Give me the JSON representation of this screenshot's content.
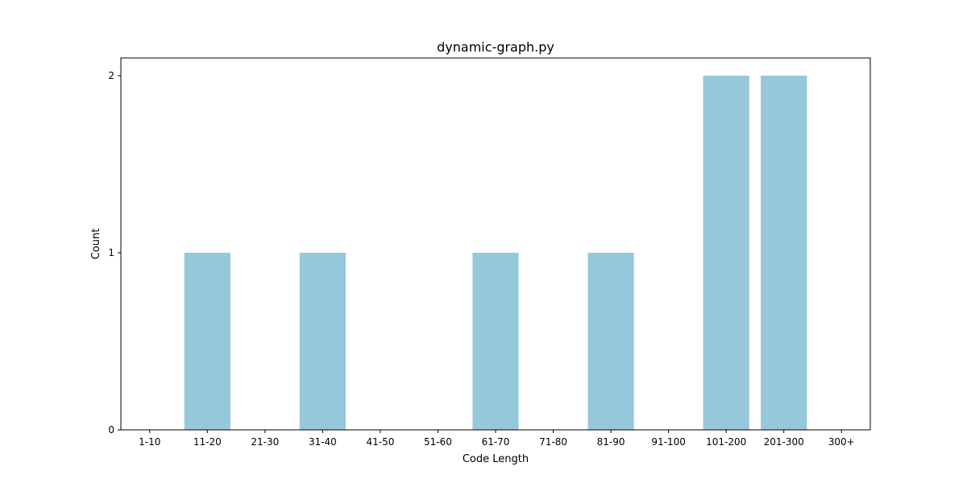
{
  "chart_data": {
    "type": "bar",
    "title": "dynamic-graph.py",
    "xlabel": "Code Length",
    "ylabel": "Count",
    "categories": [
      "1-10",
      "11-20",
      "21-30",
      "31-40",
      "41-50",
      "51-60",
      "61-70",
      "71-80",
      "81-90",
      "91-100",
      "101-200",
      "201-300",
      "300+"
    ],
    "values": [
      0,
      1,
      0,
      1,
      0,
      0,
      1,
      0,
      1,
      0,
      2,
      2,
      0
    ],
    "yticks": [
      0,
      1,
      2
    ],
    "ylim": [
      0,
      2.1
    ],
    "bar_color": "#96c8dc",
    "grid": false,
    "legend": "none"
  }
}
